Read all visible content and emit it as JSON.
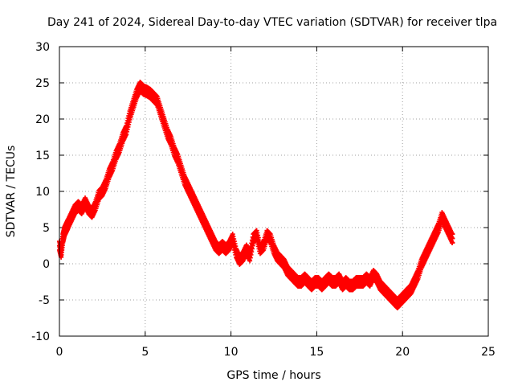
{
  "chart_data": {
    "type": "scatter",
    "title": "Day 241 of 2024, Sidereal Day-to-day VTEC variation (SDTVAR) for receiver tlpa",
    "xlabel": "GPS time / hours",
    "ylabel": "SDTVAR / TECUs",
    "xlim": [
      0,
      25
    ],
    "ylim": [
      -10,
      30
    ],
    "xticks": [
      0,
      5,
      10,
      15,
      20,
      25
    ],
    "yticks": [
      -10,
      -5,
      0,
      5,
      10,
      15,
      20,
      25,
      30
    ],
    "grid": true,
    "marker": "+",
    "series": [
      {
        "name": "SDTVAR",
        "color": "#ff0000",
        "points": [
          [
            0.0,
            2.5
          ],
          [
            0.1,
            1.5
          ],
          [
            0.2,
            3.5
          ],
          [
            0.3,
            4.5
          ],
          [
            0.4,
            5.0
          ],
          [
            0.5,
            5.5
          ],
          [
            0.7,
            6.5
          ],
          [
            0.9,
            7.5
          ],
          [
            1.1,
            8.0
          ],
          [
            1.3,
            7.5
          ],
          [
            1.5,
            8.5
          ],
          [
            1.7,
            7.5
          ],
          [
            1.9,
            7.0
          ],
          [
            2.1,
            8.0
          ],
          [
            2.3,
            9.5
          ],
          [
            2.5,
            10.0
          ],
          [
            2.7,
            11.0
          ],
          [
            2.9,
            12.5
          ],
          [
            3.1,
            13.5
          ],
          [
            3.3,
            15.0
          ],
          [
            3.5,
            16.0
          ],
          [
            3.7,
            17.5
          ],
          [
            3.9,
            18.5
          ],
          [
            4.1,
            20.5
          ],
          [
            4.3,
            22.0
          ],
          [
            4.5,
            23.5
          ],
          [
            4.7,
            24.5
          ],
          [
            4.9,
            24.0
          ],
          [
            5.1,
            23.8
          ],
          [
            5.3,
            23.5
          ],
          [
            5.5,
            23.0
          ],
          [
            5.7,
            22.5
          ],
          [
            5.9,
            21.0
          ],
          [
            6.1,
            19.5
          ],
          [
            6.3,
            18.0
          ],
          [
            6.5,
            17.0
          ],
          [
            6.7,
            15.5
          ],
          [
            6.9,
            14.5
          ],
          [
            7.1,
            13.0
          ],
          [
            7.3,
            11.5
          ],
          [
            7.5,
            10.5
          ],
          [
            7.7,
            9.5
          ],
          [
            7.9,
            8.5
          ],
          [
            8.1,
            7.5
          ],
          [
            8.3,
            6.5
          ],
          [
            8.5,
            5.5
          ],
          [
            8.7,
            4.5
          ],
          [
            8.9,
            3.5
          ],
          [
            9.1,
            2.5
          ],
          [
            9.3,
            2.0
          ],
          [
            9.5,
            2.5
          ],
          [
            9.7,
            2.0
          ],
          [
            9.9,
            2.5
          ],
          [
            10.1,
            3.5
          ],
          [
            10.3,
            1.5
          ],
          [
            10.5,
            0.5
          ],
          [
            10.7,
            1.0
          ],
          [
            10.9,
            2.0
          ],
          [
            11.1,
            1.0
          ],
          [
            11.3,
            3.5
          ],
          [
            11.5,
            4.0
          ],
          [
            11.7,
            2.0
          ],
          [
            11.9,
            2.5
          ],
          [
            12.1,
            4.0
          ],
          [
            12.3,
            3.5
          ],
          [
            12.5,
            2.0
          ],
          [
            12.7,
            1.0
          ],
          [
            12.9,
            0.5
          ],
          [
            13.1,
            0.0
          ],
          [
            13.3,
            -1.0
          ],
          [
            13.5,
            -1.5
          ],
          [
            13.7,
            -2.0
          ],
          [
            13.9,
            -2.5
          ],
          [
            14.1,
            -2.5
          ],
          [
            14.3,
            -2.0
          ],
          [
            14.5,
            -2.5
          ],
          [
            14.7,
            -3.0
          ],
          [
            14.9,
            -2.5
          ],
          [
            15.1,
            -2.5
          ],
          [
            15.3,
            -3.0
          ],
          [
            15.5,
            -2.5
          ],
          [
            15.7,
            -2.0
          ],
          [
            15.9,
            -2.5
          ],
          [
            16.1,
            -2.5
          ],
          [
            16.3,
            -2.0
          ],
          [
            16.5,
            -3.0
          ],
          [
            16.7,
            -2.5
          ],
          [
            16.9,
            -3.0
          ],
          [
            17.1,
            -3.0
          ],
          [
            17.3,
            -2.5
          ],
          [
            17.5,
            -2.5
          ],
          [
            17.7,
            -2.5
          ],
          [
            17.9,
            -2.0
          ],
          [
            18.1,
            -2.5
          ],
          [
            18.3,
            -1.5
          ],
          [
            18.5,
            -2.0
          ],
          [
            18.7,
            -3.0
          ],
          [
            18.9,
            -3.5
          ],
          [
            19.1,
            -4.0
          ],
          [
            19.3,
            -4.5
          ],
          [
            19.5,
            -5.0
          ],
          [
            19.7,
            -5.5
          ],
          [
            19.9,
            -5.0
          ],
          [
            20.1,
            -4.5
          ],
          [
            20.3,
            -4.0
          ],
          [
            20.5,
            -3.5
          ],
          [
            20.7,
            -2.5
          ],
          [
            20.9,
            -1.5
          ],
          [
            21.1,
            0.0
          ],
          [
            21.3,
            1.0
          ],
          [
            21.5,
            2.0
          ],
          [
            21.7,
            3.0
          ],
          [
            21.9,
            4.0
          ],
          [
            22.1,
            5.0
          ],
          [
            22.3,
            6.5
          ],
          [
            22.5,
            5.5
          ],
          [
            22.7,
            4.5
          ],
          [
            22.9,
            3.5
          ]
        ]
      }
    ]
  }
}
